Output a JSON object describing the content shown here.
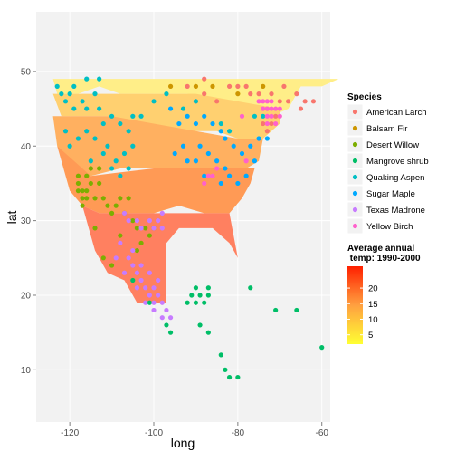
{
  "chart_data": {
    "type": "scatter",
    "title": "",
    "xlabel": "long",
    "ylabel": "lat",
    "xlim": [
      -128,
      -58
    ],
    "ylim": [
      3,
      58
    ],
    "x_ticks": [
      -120,
      -100,
      -80,
      -60
    ],
    "y_ticks": [
      10,
      20,
      30,
      40,
      50
    ],
    "x_tick_labels": [
      "-120",
      "-100",
      "-80",
      "-60"
    ],
    "y_tick_labels": [
      "10",
      "20",
      "30",
      "40",
      "50"
    ],
    "grid": true,
    "background_color": "#f2f2f2",
    "legend_species": {
      "title": "Species",
      "placement": "right",
      "entries": [
        {
          "name": "American Larch",
          "color": "#f8766d"
        },
        {
          "name": "Balsam Fir",
          "color": "#cd9600"
        },
        {
          "name": "Desert Willow",
          "color": "#7cae00"
        },
        {
          "name": "Mangrove shrub",
          "color": "#00be67"
        },
        {
          "name": "Quaking Aspen",
          "color": "#00bfc4"
        },
        {
          "name": "Sugar Maple",
          "color": "#00a9ff"
        },
        {
          "name": "Texas Madrone",
          "color": "#c77cff"
        },
        {
          "name": "Yellow Birch",
          "color": "#ff61cc"
        }
      ]
    },
    "legend_temp": {
      "title_line1": "Average annual",
      "title_line2": " temp: 1990-2000",
      "placement": "right",
      "min": 2,
      "max": 27,
      "ticks": [
        5,
        10,
        15,
        20
      ],
      "tick_labels": [
        "5",
        "10",
        "15",
        "20"
      ],
      "low_color": "#ffff33",
      "mid_color": "#ffa040",
      "high_color": "#ff2000"
    },
    "temperature_bands": [
      {
        "temp": 4,
        "color": "#ffee88",
        "polygon": [
          [
            -124,
            49
          ],
          [
            -123,
            47
          ],
          [
            -118,
            47
          ],
          [
            -113,
            48
          ],
          [
            -108,
            47
          ],
          [
            -100,
            47
          ],
          [
            -92,
            47
          ],
          [
            -86,
            45
          ],
          [
            -82,
            45
          ],
          [
            -76,
            44
          ],
          [
            -72,
            44
          ],
          [
            -68,
            45
          ],
          [
            -65,
            48
          ],
          [
            -60,
            48
          ],
          [
            -56,
            49
          ],
          [
            -70,
            49
          ],
          [
            -80,
            49
          ],
          [
            -95,
            49
          ],
          [
            -110,
            49
          ],
          [
            -124,
            49
          ]
        ]
      },
      {
        "temp": 10,
        "color": "#ffd070",
        "polygon": [
          [
            -124,
            47
          ],
          [
            -122,
            44
          ],
          [
            -117,
            44
          ],
          [
            -110,
            44
          ],
          [
            -103,
            43
          ],
          [
            -97,
            42
          ],
          [
            -90,
            42
          ],
          [
            -85,
            42
          ],
          [
            -80,
            41
          ],
          [
            -74,
            41
          ],
          [
            -70,
            43
          ],
          [
            -70,
            45
          ],
          [
            -80,
            46
          ],
          [
            -90,
            47
          ],
          [
            -100,
            47
          ],
          [
            -110,
            47
          ],
          [
            -118,
            47
          ],
          [
            -124,
            47
          ]
        ]
      },
      {
        "temp": 14,
        "color": "#ffb060",
        "polygon": [
          [
            -124,
            44
          ],
          [
            -123,
            40
          ],
          [
            -120,
            37
          ],
          [
            -115,
            36
          ],
          [
            -108,
            37
          ],
          [
            -100,
            37
          ],
          [
            -92,
            37
          ],
          [
            -85,
            37
          ],
          [
            -78,
            37
          ],
          [
            -75,
            38
          ],
          [
            -74,
            41
          ],
          [
            -80,
            41
          ],
          [
            -90,
            42
          ],
          [
            -100,
            43
          ],
          [
            -110,
            44
          ],
          [
            -124,
            44
          ]
        ]
      },
      {
        "temp": 17,
        "color": "#ff9a55",
        "polygon": [
          [
            -123,
            40
          ],
          [
            -120,
            34
          ],
          [
            -117,
            32
          ],
          [
            -113,
            31
          ],
          [
            -106,
            31
          ],
          [
            -100,
            31
          ],
          [
            -94,
            32
          ],
          [
            -88,
            31
          ],
          [
            -82,
            31
          ],
          [
            -79,
            33
          ],
          [
            -77,
            35
          ],
          [
            -76,
            37
          ],
          [
            -85,
            37
          ],
          [
            -100,
            37
          ],
          [
            -115,
            36
          ],
          [
            -123,
            40
          ]
        ]
      },
      {
        "temp": 22,
        "color": "#ff8060",
        "polygon": [
          [
            -117,
            32
          ],
          [
            -114,
            26
          ],
          [
            -111,
            23
          ],
          [
            -107,
            22
          ],
          [
            -104,
            19
          ],
          [
            -97,
            19
          ],
          [
            -97,
            23
          ],
          [
            -97,
            27
          ],
          [
            -94,
            29
          ],
          [
            -90,
            29
          ],
          [
            -86,
            29
          ],
          [
            -82,
            27
          ],
          [
            -80,
            25
          ],
          [
            -81,
            28
          ],
          [
            -82,
            31
          ],
          [
            -88,
            31
          ],
          [
            -100,
            31
          ],
          [
            -113,
            31
          ],
          [
            -117,
            32
          ]
        ]
      }
    ],
    "series": [
      {
        "name": "American Larch",
        "points": [
          [
            -92,
            48
          ],
          [
            -88,
            47
          ],
          [
            -85,
            46
          ],
          [
            -80,
            48
          ],
          [
            -78,
            48
          ],
          [
            -75,
            47
          ],
          [
            -72,
            47
          ],
          [
            -70,
            46
          ],
          [
            -68,
            46
          ],
          [
            -66,
            47
          ],
          [
            -64,
            46
          ],
          [
            -62,
            46
          ],
          [
            -71,
            44
          ],
          [
            -73,
            45
          ],
          [
            -74,
            43
          ],
          [
            -73,
            42
          ],
          [
            -72,
            43
          ],
          [
            -88,
            49
          ],
          [
            -90,
            46
          ],
          [
            -82,
            48
          ],
          [
            -77,
            47
          ],
          [
            -69,
            48
          ],
          [
            -65,
            45
          ]
        ]
      },
      {
        "name": "Balsam Fir",
        "points": [
          [
            -96,
            48
          ],
          [
            -90,
            48
          ],
          [
            -86,
            48
          ],
          [
            -80,
            47
          ],
          [
            -74,
            48
          ]
        ]
      },
      {
        "name": "Desert Willow",
        "points": [
          [
            -118,
            35
          ],
          [
            -117,
            34
          ],
          [
            -117,
            33
          ],
          [
            -116,
            34
          ],
          [
            -116,
            33
          ],
          [
            -118,
            34
          ],
          [
            -115,
            35
          ],
          [
            -114,
            33
          ],
          [
            -113,
            35
          ],
          [
            -112,
            33
          ],
          [
            -111,
            32
          ],
          [
            -110,
            31
          ],
          [
            -109,
            32
          ],
          [
            -108,
            33
          ],
          [
            -107,
            31
          ],
          [
            -106,
            33
          ],
          [
            -105,
            30
          ],
          [
            -104,
            29
          ],
          [
            -102,
            29
          ],
          [
            -101,
            28
          ],
          [
            -100,
            29
          ],
          [
            -103,
            27
          ],
          [
            -104,
            26
          ],
          [
            -108,
            28
          ],
          [
            -110,
            24
          ],
          [
            -112,
            25
          ],
          [
            -114,
            29
          ],
          [
            -117,
            32
          ],
          [
            -116,
            36
          ],
          [
            -115,
            37
          ],
          [
            -118,
            36
          ],
          [
            -113,
            37
          ]
        ]
      },
      {
        "name": "Mangrove shrub",
        "points": [
          [
            -91,
            20
          ],
          [
            -90,
            19
          ],
          [
            -88,
            19
          ],
          [
            -87,
            20
          ],
          [
            -87,
            21
          ],
          [
            -92,
            19
          ],
          [
            -90,
            21
          ],
          [
            -89,
            20
          ],
          [
            -97,
            16
          ],
          [
            -96,
            15
          ],
          [
            -89,
            16
          ],
          [
            -87,
            15
          ],
          [
            -84,
            12
          ],
          [
            -83,
            10
          ],
          [
            -82,
            9
          ],
          [
            -80,
            9
          ],
          [
            -77,
            21
          ],
          [
            -71,
            18
          ],
          [
            -66,
            18
          ],
          [
            -60,
            13
          ],
          [
            -101,
            19
          ],
          [
            -105,
            22
          ]
        ]
      },
      {
        "name": "Quaking Aspen",
        "points": [
          [
            -123,
            48
          ],
          [
            -122,
            47
          ],
          [
            -121,
            46
          ],
          [
            -120,
            47
          ],
          [
            -119,
            45
          ],
          [
            -117,
            46
          ],
          [
            -116,
            45
          ],
          [
            -114,
            47
          ],
          [
            -113,
            45
          ],
          [
            -112,
            43
          ],
          [
            -110,
            44
          ],
          [
            -108,
            43
          ],
          [
            -106,
            42
          ],
          [
            -105,
            40
          ],
          [
            -107,
            39
          ],
          [
            -109,
            38
          ],
          [
            -111,
            40
          ],
          [
            -112,
            39
          ],
          [
            -114,
            41
          ],
          [
            -116,
            42
          ],
          [
            -118,
            41
          ],
          [
            -120,
            40
          ],
          [
            -121,
            42
          ],
          [
            -110,
            37
          ],
          [
            -108,
            36
          ],
          [
            -106,
            37
          ],
          [
            -115,
            38
          ],
          [
            -105,
            44
          ],
          [
            -103,
            44
          ],
          [
            -100,
            46
          ],
          [
            -97,
            47
          ],
          [
            -93,
            45
          ],
          [
            -90,
            46
          ],
          [
            -84,
            43
          ],
          [
            -82,
            42
          ],
          [
            -76,
            44
          ],
          [
            -74,
            44
          ],
          [
            -119,
            48
          ],
          [
            -116,
            49
          ],
          [
            -113,
            49
          ]
        ]
      },
      {
        "name": "Sugar Maple",
        "points": [
          [
            -96,
            45
          ],
          [
            -94,
            43
          ],
          [
            -92,
            44
          ],
          [
            -90,
            43
          ],
          [
            -88,
            44
          ],
          [
            -86,
            43
          ],
          [
            -84,
            42
          ],
          [
            -83,
            41
          ],
          [
            -81,
            40
          ],
          [
            -79,
            39
          ],
          [
            -77,
            40
          ],
          [
            -75,
            41
          ],
          [
            -73,
            41
          ],
          [
            -89,
            40
          ],
          [
            -87,
            39
          ],
          [
            -85,
            38
          ],
          [
            -83,
            37
          ],
          [
            -82,
            36
          ],
          [
            -80,
            35
          ],
          [
            -88,
            36
          ],
          [
            -90,
            38
          ],
          [
            -92,
            38
          ],
          [
            -93,
            40
          ],
          [
            -95,
            39
          ],
          [
            -76,
            38
          ],
          [
            -78,
            36
          ],
          [
            -84,
            35
          ]
        ]
      },
      {
        "name": "Texas Madrone",
        "points": [
          [
            -107,
            31
          ],
          [
            -106,
            30
          ],
          [
            -104,
            30
          ],
          [
            -103,
            29
          ],
          [
            -101,
            30
          ],
          [
            -100,
            29
          ],
          [
            -99,
            30
          ],
          [
            -98,
            31
          ],
          [
            -98,
            29
          ],
          [
            -106,
            25
          ],
          [
            -105,
            24
          ],
          [
            -104,
            23
          ],
          [
            -103,
            22
          ],
          [
            -102,
            21
          ],
          [
            -101,
            20
          ],
          [
            -100,
            21
          ],
          [
            -99,
            20
          ],
          [
            -98,
            19
          ],
          [
            -100,
            19
          ],
          [
            -102,
            19
          ],
          [
            -104,
            21
          ],
          [
            -103,
            24
          ],
          [
            -101,
            23
          ],
          [
            -99,
            22
          ],
          [
            -97,
            18
          ],
          [
            -96,
            17
          ],
          [
            -98,
            17
          ],
          [
            -100,
            18
          ],
          [
            -105,
            26
          ],
          [
            -108,
            27
          ],
          [
            -109,
            25
          ],
          [
            -107,
            23
          ]
        ]
      },
      {
        "name": "Yellow Birch",
        "points": [
          [
            -74,
            46
          ],
          [
            -73,
            45
          ],
          [
            -72,
            44
          ],
          [
            -71,
            45
          ],
          [
            -73,
            44
          ],
          [
            -74,
            45
          ],
          [
            -72,
            45
          ],
          [
            -71,
            43
          ],
          [
            -70,
            44
          ],
          [
            -73,
            46
          ],
          [
            -72,
            46
          ],
          [
            -70,
            45
          ],
          [
            -86,
            36
          ],
          [
            -87,
            36
          ],
          [
            -85,
            37
          ],
          [
            -88,
            35
          ],
          [
            -78,
            38
          ],
          [
            -75,
            46
          ],
          [
            -73,
            43
          ],
          [
            -79,
            44
          ]
        ]
      }
    ]
  }
}
